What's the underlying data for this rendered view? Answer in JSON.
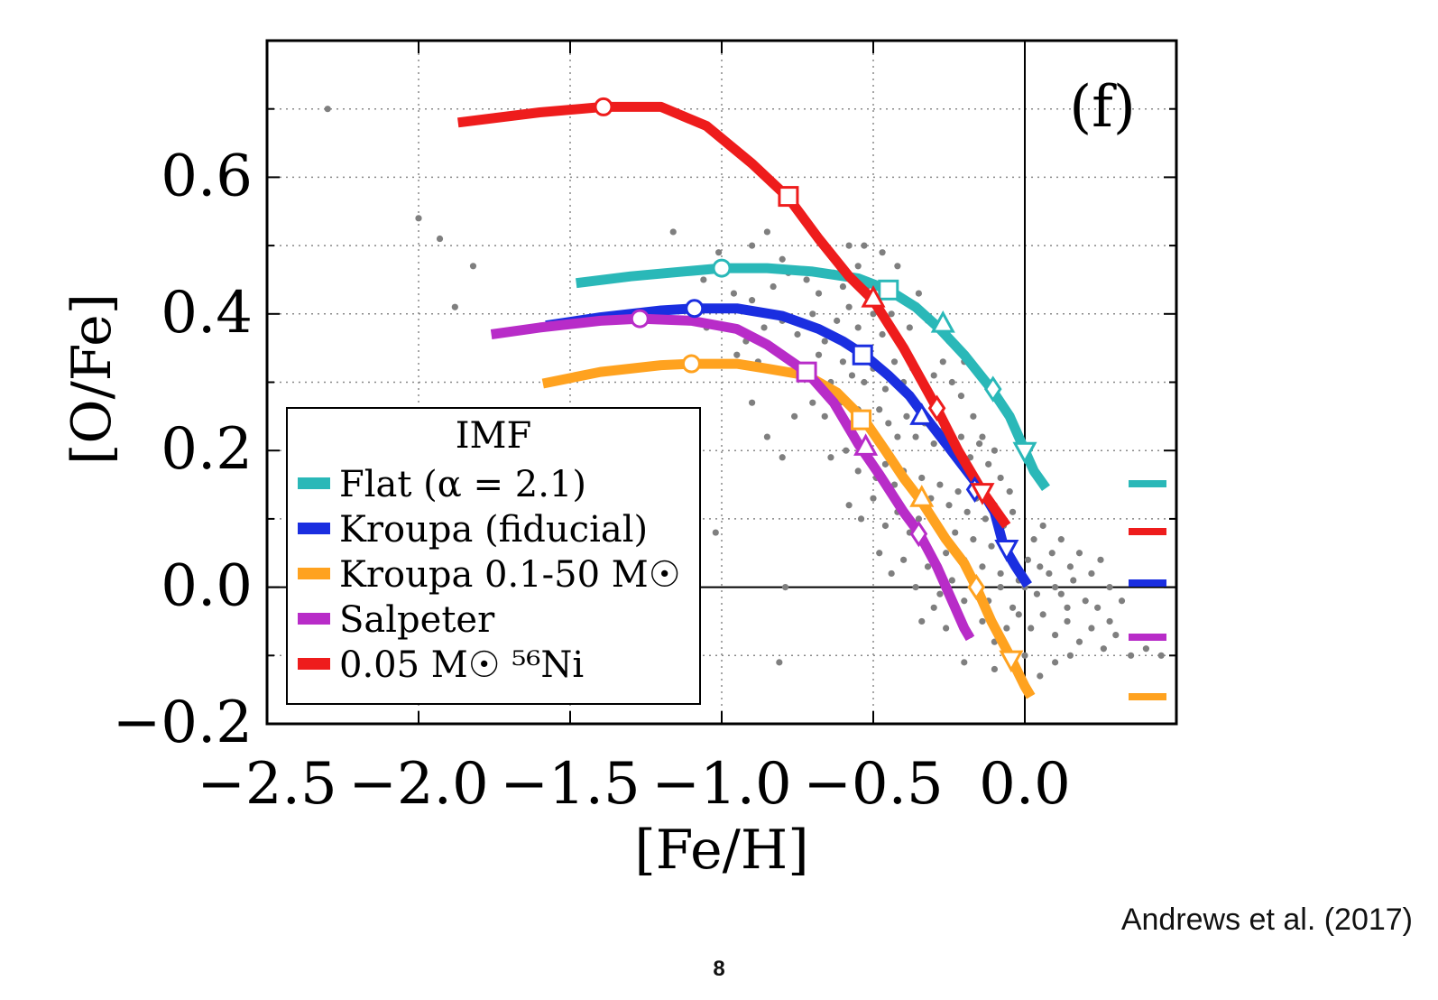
{
  "citation": "Andrews et al. (2017)",
  "page_number": "8",
  "chart_data": {
    "type": "line",
    "panel_label": "(f)",
    "xlabel": "[Fe/H]",
    "ylabel": "[O/Fe]",
    "xlim": [
      -2.5,
      0.5
    ],
    "ylim": [
      -0.2,
      0.8
    ],
    "x_ticks": [
      "−2.5",
      "−2.0",
      "−1.5",
      "−1.0",
      "−0.5",
      "0.0"
    ],
    "y_ticks": [
      "−0.2",
      "0.0",
      "0.2",
      "0.4",
      "0.6"
    ],
    "grid": true,
    "legend_title": "IMF",
    "legend_position": "lower-left",
    "series": [
      {
        "name": "Flat (α = 2.1)",
        "color": "#2ab8b8",
        "points": [
          [
            -1.48,
            0.445
          ],
          [
            -1.3,
            0.455
          ],
          [
            -1.1,
            0.463
          ],
          [
            -1.0,
            0.467
          ],
          [
            -0.85,
            0.467
          ],
          [
            -0.7,
            0.462
          ],
          [
            -0.55,
            0.452
          ],
          [
            -0.45,
            0.435
          ],
          [
            -0.36,
            0.41
          ],
          [
            -0.28,
            0.378
          ],
          [
            -0.2,
            0.34
          ],
          [
            -0.11,
            0.29
          ],
          [
            -0.05,
            0.25
          ],
          [
            0.0,
            0.2
          ],
          [
            0.03,
            0.17
          ],
          [
            0.07,
            0.145
          ]
        ],
        "markers": [
          {
            "shape": "circle",
            "x": -1.0,
            "y": 0.467
          },
          {
            "shape": "square",
            "x": -0.45,
            "y": 0.435
          },
          {
            "shape": "triangle-up",
            "x": -0.27,
            "y": 0.385
          },
          {
            "shape": "diamond",
            "x": -0.105,
            "y": 0.29
          },
          {
            "shape": "triangle-down",
            "x": 0.0,
            "y": 0.2
          }
        ]
      },
      {
        "name": "Kroupa (fiducial)",
        "color": "#1a2ee0",
        "points": [
          [
            -1.58,
            0.383
          ],
          [
            -1.4,
            0.395
          ],
          [
            -1.2,
            0.405
          ],
          [
            -1.09,
            0.408
          ],
          [
            -0.95,
            0.408
          ],
          [
            -0.8,
            0.397
          ],
          [
            -0.68,
            0.378
          ],
          [
            -0.6,
            0.36
          ],
          [
            -0.53,
            0.34
          ],
          [
            -0.45,
            0.31
          ],
          [
            -0.38,
            0.28
          ],
          [
            -0.33,
            0.25
          ],
          [
            -0.26,
            0.21
          ],
          [
            -0.2,
            0.175
          ],
          [
            -0.14,
            0.14
          ],
          [
            -0.1,
            0.11
          ],
          [
            -0.07,
            0.06
          ],
          [
            -0.03,
            0.03
          ],
          [
            0.01,
            0.003
          ]
        ],
        "markers": [
          {
            "shape": "circle",
            "x": -1.09,
            "y": 0.408
          },
          {
            "shape": "square",
            "x": -0.535,
            "y": 0.34
          },
          {
            "shape": "triangle-up",
            "x": -0.34,
            "y": 0.25
          },
          {
            "shape": "diamond",
            "x": -0.165,
            "y": 0.143
          },
          {
            "shape": "triangle-down",
            "x": -0.06,
            "y": 0.057
          }
        ]
      },
      {
        "name": "Kroupa 0.1-50 M☉",
        "color": "#ffa21f",
        "points": [
          [
            -1.59,
            0.298
          ],
          [
            -1.4,
            0.315
          ],
          [
            -1.2,
            0.325
          ],
          [
            -1.1,
            0.327
          ],
          [
            -0.95,
            0.327
          ],
          [
            -0.85,
            0.32
          ],
          [
            -0.72,
            0.31
          ],
          [
            -0.62,
            0.285
          ],
          [
            -0.53,
            0.245
          ],
          [
            -0.46,
            0.2
          ],
          [
            -0.4,
            0.16
          ],
          [
            -0.34,
            0.125
          ],
          [
            -0.26,
            0.07
          ],
          [
            -0.2,
            0.035
          ],
          [
            -0.16,
            0.0
          ],
          [
            -0.11,
            -0.05
          ],
          [
            -0.05,
            -0.1
          ],
          [
            0.0,
            -0.145
          ],
          [
            0.02,
            -0.16
          ]
        ],
        "markers": [
          {
            "shape": "circle",
            "x": -1.1,
            "y": 0.327
          },
          {
            "shape": "square",
            "x": -0.54,
            "y": 0.245
          },
          {
            "shape": "triangle-up",
            "x": -0.34,
            "y": 0.13
          },
          {
            "shape": "diamond",
            "x": -0.16,
            "y": 0.0
          },
          {
            "shape": "triangle-down",
            "x": -0.045,
            "y": -0.105
          }
        ]
      },
      {
        "name": "Salpeter",
        "color": "#b82cc8",
        "points": [
          [
            -1.76,
            0.37
          ],
          [
            -1.6,
            0.38
          ],
          [
            -1.4,
            0.39
          ],
          [
            -1.27,
            0.393
          ],
          [
            -1.1,
            0.39
          ],
          [
            -0.95,
            0.378
          ],
          [
            -0.85,
            0.355
          ],
          [
            -0.72,
            0.315
          ],
          [
            -0.63,
            0.27
          ],
          [
            -0.55,
            0.21
          ],
          [
            -0.48,
            0.165
          ],
          [
            -0.4,
            0.11
          ],
          [
            -0.35,
            0.08
          ],
          [
            -0.29,
            0.03
          ],
          [
            -0.24,
            -0.02
          ],
          [
            -0.2,
            -0.06
          ],
          [
            -0.18,
            -0.075
          ]
        ],
        "markers": [
          {
            "shape": "circle",
            "x": -1.27,
            "y": 0.393
          },
          {
            "shape": "square",
            "x": -0.72,
            "y": 0.315
          },
          {
            "shape": "triangle-up",
            "x": -0.525,
            "y": 0.205
          },
          {
            "shape": "diamond",
            "x": -0.35,
            "y": 0.078
          }
        ]
      },
      {
        "name": "0.05 M☉ ⁵⁶Ni",
        "color": "#ee1c1c",
        "points": [
          [
            -1.87,
            0.68
          ],
          [
            -1.6,
            0.695
          ],
          [
            -1.39,
            0.703
          ],
          [
            -1.2,
            0.703
          ],
          [
            -1.05,
            0.675
          ],
          [
            -0.9,
            0.62
          ],
          [
            -0.78,
            0.57
          ],
          [
            -0.68,
            0.51
          ],
          [
            -0.58,
            0.455
          ],
          [
            -0.5,
            0.42
          ],
          [
            -0.4,
            0.35
          ],
          [
            -0.3,
            0.27
          ],
          [
            -0.22,
            0.2
          ],
          [
            -0.14,
            0.14
          ],
          [
            -0.06,
            0.09
          ]
        ],
        "markers": [
          {
            "shape": "circle",
            "x": -1.39,
            "y": 0.703
          },
          {
            "shape": "square",
            "x": -0.78,
            "y": 0.572
          },
          {
            "shape": "triangle-up",
            "x": -0.5,
            "y": 0.422
          },
          {
            "shape": "diamond",
            "x": -0.29,
            "y": 0.262
          },
          {
            "shape": "triangle-down",
            "x": -0.14,
            "y": 0.14
          }
        ]
      }
    ],
    "side_swatches": [
      "#2ab8b8",
      "#ee1c1c",
      "#1a2ee0",
      "#b82cc8",
      "#ffa21f"
    ],
    "scatter_data": {
      "color": "#7f7f7f",
      "points": [
        [
          -2.3,
          0.7
        ],
        [
          -2.0,
          0.54
        ],
        [
          -1.93,
          0.51
        ],
        [
          -1.82,
          0.47
        ],
        [
          -1.88,
          0.41
        ],
        [
          -1.16,
          0.52
        ],
        [
          -1.01,
          0.49
        ],
        [
          -0.9,
          0.5
        ],
        [
          -0.85,
          0.52
        ],
        [
          -0.8,
          0.48
        ],
        [
          -0.58,
          0.5
        ],
        [
          -0.53,
          0.5
        ],
        [
          -0.47,
          0.49
        ],
        [
          -1.06,
          0.45
        ],
        [
          -0.96,
          0.43
        ],
        [
          -0.9,
          0.42
        ],
        [
          -0.83,
          0.44
        ],
        [
          -0.78,
          0.46
        ],
        [
          -0.72,
          0.45
        ],
        [
          -0.68,
          0.43
        ],
        [
          -0.63,
          0.46
        ],
        [
          -0.6,
          0.44
        ],
        [
          -0.55,
          0.47
        ],
        [
          -0.52,
          0.44
        ],
        [
          -0.86,
          0.38
        ],
        [
          -0.8,
          0.39
        ],
        [
          -0.75,
          0.37
        ],
        [
          -0.7,
          0.4
        ],
        [
          -0.66,
          0.36
        ],
        [
          -0.62,
          0.39
        ],
        [
          -0.58,
          0.41
        ],
        [
          -0.55,
          0.38
        ],
        [
          -0.5,
          0.4
        ],
        [
          -0.47,
          0.37
        ],
        [
          -0.44,
          0.4
        ],
        [
          -0.41,
          0.36
        ],
        [
          -0.38,
          0.38
        ],
        [
          -0.73,
          0.32
        ],
        [
          -0.68,
          0.34
        ],
        [
          -0.64,
          0.3
        ],
        [
          -0.6,
          0.33
        ],
        [
          -0.57,
          0.31
        ],
        [
          -0.53,
          0.3
        ],
        [
          -0.5,
          0.32
        ],
        [
          -0.46,
          0.29
        ],
        [
          -0.43,
          0.33
        ],
        [
          -0.4,
          0.3
        ],
        [
          -0.37,
          0.32
        ],
        [
          -0.33,
          0.29
        ],
        [
          -0.3,
          0.31
        ],
        [
          -0.27,
          0.33
        ],
        [
          -0.24,
          0.3
        ],
        [
          -0.21,
          0.28
        ],
        [
          -0.7,
          0.27
        ],
        [
          -0.66,
          0.25
        ],
        [
          -0.61,
          0.27
        ],
        [
          -0.58,
          0.24
        ],
        [
          -0.55,
          0.26
        ],
        [
          -0.51,
          0.23
        ],
        [
          -0.48,
          0.26
        ],
        [
          -0.45,
          0.24
        ],
        [
          -0.42,
          0.22
        ],
        [
          -0.39,
          0.25
        ],
        [
          -0.36,
          0.22
        ],
        [
          -0.33,
          0.24
        ],
        [
          -0.3,
          0.21
        ],
        [
          -0.27,
          0.23
        ],
        [
          -0.24,
          0.2
        ],
        [
          -0.21,
          0.22
        ],
        [
          -0.18,
          0.19
        ],
        [
          -0.15,
          0.21
        ],
        [
          -0.12,
          0.18
        ],
        [
          -0.64,
          0.19
        ],
        [
          -0.59,
          0.2
        ],
        [
          -0.55,
          0.17
        ],
        [
          -0.52,
          0.19
        ],
        [
          -0.49,
          0.16
        ],
        [
          -0.46,
          0.18
        ],
        [
          -0.43,
          0.15
        ],
        [
          -0.4,
          0.17
        ],
        [
          -0.37,
          0.14
        ],
        [
          -0.34,
          0.16
        ],
        [
          -0.31,
          0.13
        ],
        [
          -0.28,
          0.15
        ],
        [
          -0.25,
          0.12
        ],
        [
          -0.22,
          0.14
        ],
        [
          -0.19,
          0.11
        ],
        [
          -0.16,
          0.13
        ],
        [
          -0.13,
          0.1
        ],
        [
          -0.1,
          0.12
        ],
        [
          -0.07,
          0.09
        ],
        [
          -0.04,
          0.11
        ],
        [
          -0.58,
          0.12
        ],
        [
          -0.54,
          0.1
        ],
        [
          -0.5,
          0.13
        ],
        [
          -0.46,
          0.09
        ],
        [
          -0.42,
          0.11
        ],
        [
          -0.38,
          0.08
        ],
        [
          -0.35,
          0.1
        ],
        [
          -0.32,
          0.06
        ],
        [
          -0.29,
          0.09
        ],
        [
          -0.26,
          0.05
        ],
        [
          -0.23,
          0.08
        ],
        [
          -0.2,
          0.04
        ],
        [
          -0.17,
          0.07
        ],
        [
          -0.14,
          0.03
        ],
        [
          -0.11,
          0.06
        ],
        [
          -0.08,
          0.02
        ],
        [
          -0.05,
          0.05
        ],
        [
          -0.02,
          0.01
        ],
        [
          0.01,
          0.04
        ],
        [
          -0.48,
          0.05
        ],
        [
          -0.44,
          0.02
        ],
        [
          -0.4,
          0.04
        ],
        [
          -0.36,
          0.0
        ],
        [
          -0.32,
          0.03
        ],
        [
          -0.28,
          -0.01
        ],
        [
          -0.24,
          0.01
        ],
        [
          -0.2,
          -0.02
        ],
        [
          -0.16,
          0.01
        ],
        [
          -0.12,
          -0.02
        ],
        [
          -0.08,
          0.0
        ],
        [
          -0.04,
          -0.03
        ],
        [
          0.0,
          0.0
        ],
        [
          0.04,
          -0.01
        ],
        [
          0.08,
          0.02
        ],
        [
          0.12,
          -0.01
        ],
        [
          0.16,
          0.01
        ],
        [
          0.2,
          -0.02
        ],
        [
          -0.34,
          -0.05
        ],
        [
          -0.3,
          -0.03
        ],
        [
          -0.26,
          -0.06
        ],
        [
          -0.22,
          -0.04
        ],
        [
          -0.18,
          -0.07
        ],
        [
          -0.14,
          -0.05
        ],
        [
          -0.1,
          -0.08
        ],
        [
          -0.06,
          -0.06
        ],
        [
          -0.02,
          -0.04
        ],
        [
          0.02,
          -0.06
        ],
        [
          0.06,
          -0.04
        ],
        [
          0.1,
          -0.07
        ],
        [
          0.14,
          -0.05
        ],
        [
          0.18,
          -0.08
        ],
        [
          0.22,
          -0.06
        ],
        [
          0.26,
          -0.09
        ],
        [
          -0.2,
          -0.11
        ],
        [
          -0.1,
          -0.12
        ],
        [
          0.0,
          -0.1
        ],
        [
          0.05,
          -0.13
        ],
        [
          0.1,
          -0.11
        ],
        [
          0.15,
          -0.1
        ],
        [
          0.3,
          -0.07
        ],
        [
          0.35,
          -0.1
        ],
        [
          0.4,
          -0.09
        ],
        [
          0.45,
          -0.1
        ],
        [
          -1.02,
          0.08
        ],
        [
          -0.79,
          0.0
        ],
        [
          -0.81,
          -0.11
        ],
        [
          -0.9,
          0.27
        ],
        [
          -0.85,
          0.22
        ],
        [
          -0.8,
          0.19
        ],
        [
          -0.76,
          0.25
        ],
        [
          -0.95,
          0.34
        ],
        [
          -1.05,
          0.38
        ],
        [
          -0.92,
          0.36
        ],
        [
          -0.88,
          0.33
        ],
        [
          -0.42,
          0.47
        ],
        [
          -0.35,
          0.43
        ],
        [
          -0.32,
          0.39
        ],
        [
          -0.25,
          0.36
        ],
        [
          -0.2,
          0.33
        ],
        [
          -0.17,
          0.25
        ],
        [
          -0.14,
          0.22
        ],
        [
          -0.1,
          0.2
        ],
        [
          -0.08,
          0.16
        ],
        [
          -0.05,
          0.14
        ],
        [
          0.03,
          0.07
        ],
        [
          0.06,
          0.09
        ],
        [
          0.09,
          0.05
        ],
        [
          0.12,
          0.07
        ],
        [
          0.15,
          0.03
        ],
        [
          0.18,
          0.05
        ],
        [
          0.22,
          0.02
        ],
        [
          0.25,
          0.04
        ],
        [
          0.28,
          0.0
        ],
        [
          0.32,
          -0.02
        ],
        [
          0.05,
          0.03
        ],
        [
          0.1,
          0.0
        ],
        [
          0.14,
          -0.03
        ],
        [
          0.24,
          -0.03
        ],
        [
          0.28,
          -0.05
        ]
      ]
    }
  }
}
